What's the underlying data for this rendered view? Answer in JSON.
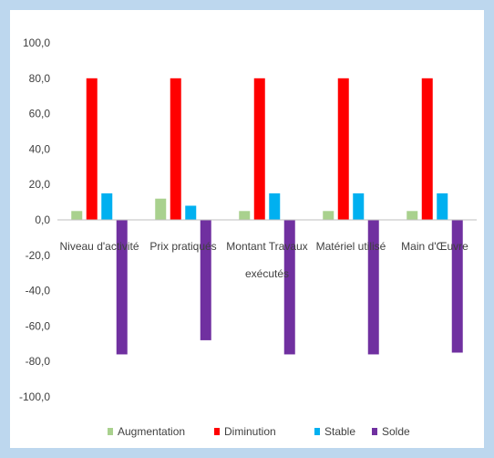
{
  "chart_data": {
    "type": "bar",
    "title": "",
    "xlabel": "",
    "ylabel": "",
    "ylim": [
      -100,
      100
    ],
    "ytick_step": 20,
    "ytick_labels": [
      "100,0",
      "80,0",
      "60,0",
      "40,0",
      "20,0",
      "0,0",
      "-20,0",
      "-40,0",
      "-60,0",
      "-80,0",
      "-100,0"
    ],
    "grid": false,
    "legend_position": "bottom",
    "categories": [
      [
        "Niveau d'activité"
      ],
      [
        "Prix pratiqués"
      ],
      [
        "Montant Travaux",
        "exécutés"
      ],
      [
        "Matériel utilisé"
      ],
      [
        "Main d'Œuvre"
      ]
    ],
    "series": [
      {
        "name": "Augmentation",
        "color": "#a9d18e",
        "values": [
          5,
          12,
          5,
          5,
          5
        ]
      },
      {
        "name": "Diminution",
        "color": "#ff0000",
        "values": [
          80,
          80,
          80,
          80,
          80
        ]
      },
      {
        "name": "Stable",
        "color": "#00b0f0",
        "values": [
          15,
          8,
          15,
          15,
          15
        ]
      },
      {
        "name": "Solde",
        "color": "#7030a0",
        "values": [
          -76,
          -68,
          -76,
          -76,
          -75
        ]
      }
    ]
  }
}
